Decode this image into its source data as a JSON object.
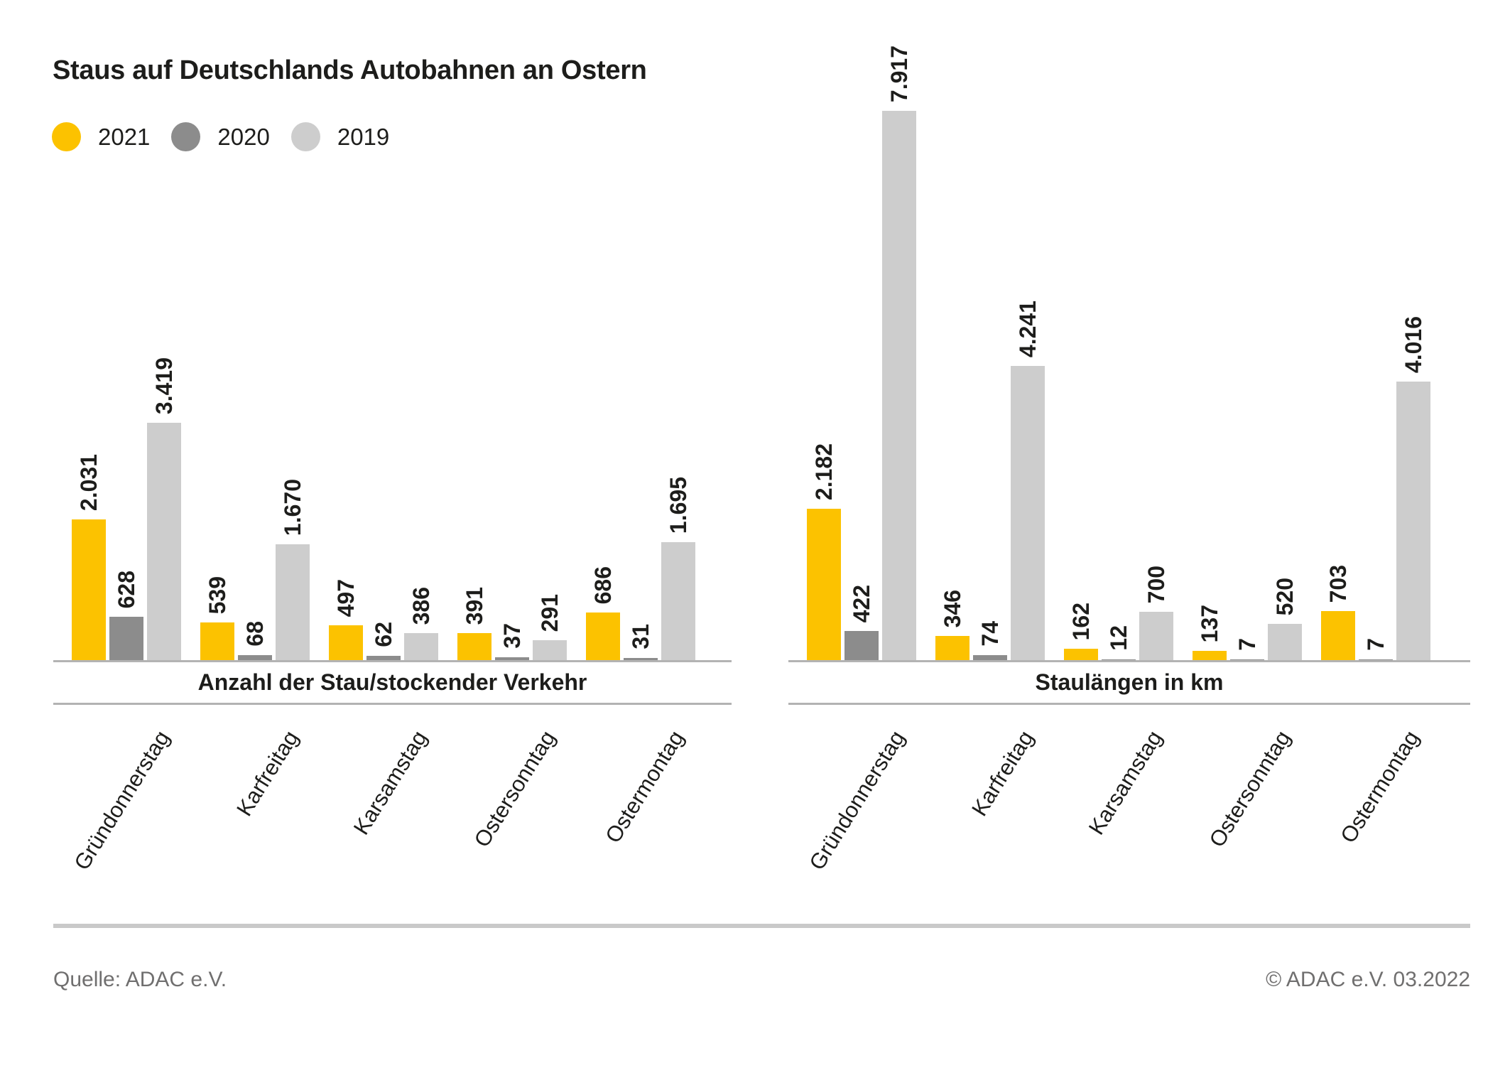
{
  "title": "Staus auf Deutschlands Autobahnen an Ostern",
  "legend": {
    "items": [
      {
        "label": "2021",
        "color": "#fcc200"
      },
      {
        "label": "2020",
        "color": "#8c8c8c"
      },
      {
        "label": "2019",
        "color": "#cdcdcd"
      }
    ],
    "position": "top-left"
  },
  "chart_data": [
    {
      "type": "bar",
      "subtitle": "Anzahl der Stau/stockender Verkehr",
      "categories": [
        "Gründonnerstag",
        "Karfreitag",
        "Karsamstag",
        "Ostersonntag",
        "Ostermontag"
      ],
      "series": [
        {
          "name": "2021",
          "color": "#fcc200",
          "values": [
            2031,
            539,
            497,
            391,
            686
          ],
          "labels": [
            "2.031",
            "539",
            "497",
            "391",
            "686"
          ]
        },
        {
          "name": "2020",
          "color": "#8c8c8c",
          "values": [
            628,
            68,
            62,
            37,
            31
          ],
          "labels": [
            "628",
            "68",
            "62",
            "37",
            "31"
          ]
        },
        {
          "name": "2019",
          "color": "#cdcdcd",
          "values": [
            3419,
            1670,
            386,
            291,
            1695
          ],
          "labels": [
            "3.419",
            "1.670",
            "386",
            "291",
            "1.695"
          ]
        }
      ],
      "value_labels_rotated": true,
      "grid": false,
      "ylim": [
        0,
        8330
      ]
    },
    {
      "type": "bar",
      "subtitle": "Staulängen in km",
      "categories": [
        "Gründonnerstag",
        "Karfreitag",
        "Karsamstag",
        "Ostersonntag",
        "Ostermontag"
      ],
      "series": [
        {
          "name": "2021",
          "color": "#fcc200",
          "values": [
            2182,
            346,
            162,
            137,
            703
          ],
          "labels": [
            "2.182",
            "346",
            "162",
            "137",
            "703"
          ]
        },
        {
          "name": "2020",
          "color": "#8c8c8c",
          "values": [
            422,
            74,
            12,
            7,
            7
          ],
          "labels": [
            "422",
            "74",
            "12",
            "7",
            "7"
          ]
        },
        {
          "name": "2019",
          "color": "#cdcdcd",
          "values": [
            7917,
            4241,
            700,
            520,
            4016
          ],
          "labels": [
            "7.917",
            "4.241",
            "700",
            "520",
            "4.016"
          ]
        }
      ],
      "value_labels_rotated": true,
      "grid": false,
      "ylim": [
        0,
        8330
      ]
    }
  ],
  "footer": {
    "source": "Quelle: ADAC e.V.",
    "copyright": "© ADAC e.V. 03.2022"
  }
}
